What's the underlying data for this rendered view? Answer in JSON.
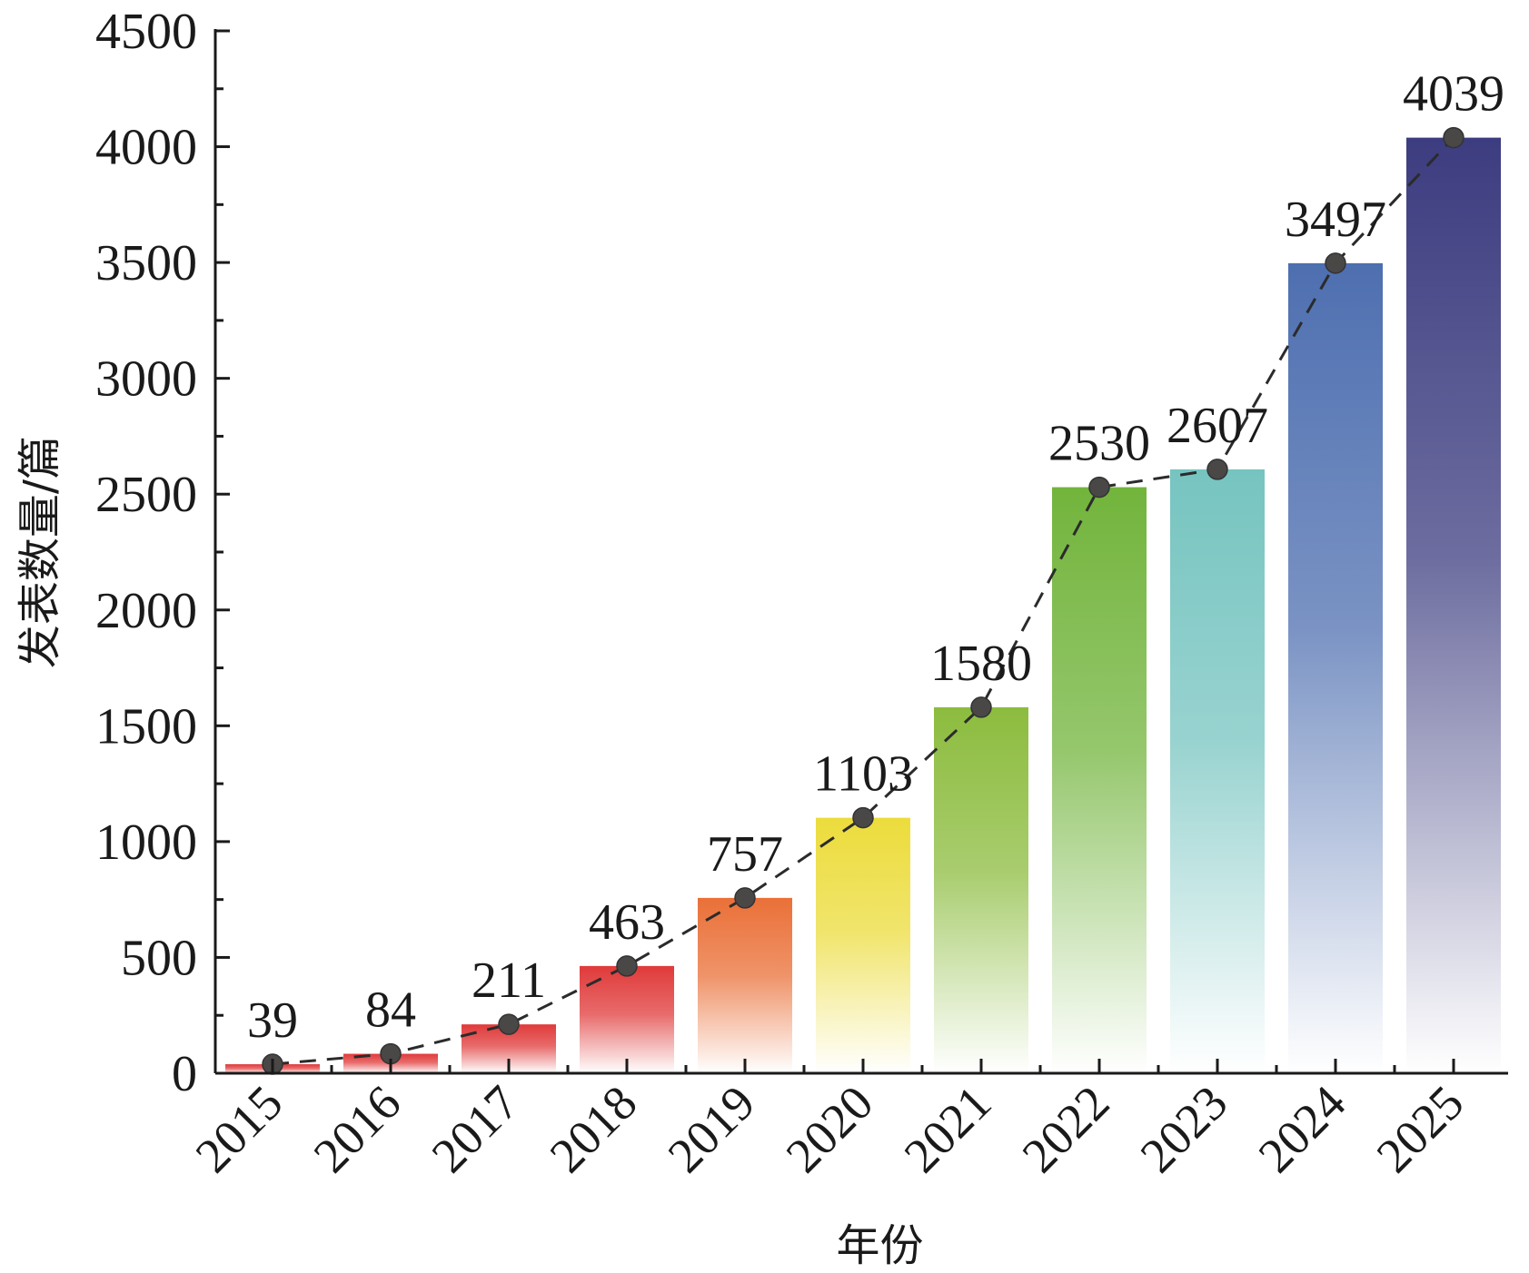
{
  "chart_data": {
    "type": "bar",
    "title": "",
    "xlabel": "年份",
    "ylabel": "发表数量/篇",
    "categories": [
      "2015",
      "2016",
      "2017",
      "2018",
      "2019",
      "2020",
      "2021",
      "2022",
      "2023",
      "2024",
      "2025"
    ],
    "values": [
      39,
      84,
      211,
      463,
      757,
      1103,
      1580,
      2530,
      2607,
      3497,
      4039
    ],
    "data_labels": [
      "39",
      "84",
      "211",
      "463",
      "757",
      "1103",
      "1580",
      "2530",
      "2607",
      "3497",
      "4039"
    ],
    "ylim": [
      0,
      4500
    ],
    "yticks": [
      0,
      500,
      1000,
      1500,
      2000,
      2500,
      3000,
      3500,
      4000,
      4500
    ],
    "ytick_labels": [
      "0",
      "500",
      "1000",
      "1500",
      "2000",
      "2500",
      "3000",
      "3500",
      "4000",
      "4500"
    ],
    "trend_line": "dashed line with circular markers at each bar top",
    "bar_colors": [
      "#e03a3a",
      "#e03a3a",
      "#e03a3a",
      "#e03a3a",
      "#ea7038",
      "#ecdc3c",
      "#8cbc3e",
      "#72b43c",
      "#76c4c0",
      "#4e6fb0",
      "#3c3c80"
    ],
    "marker_color": "#4a4747",
    "grid": false,
    "legend": "none"
  }
}
